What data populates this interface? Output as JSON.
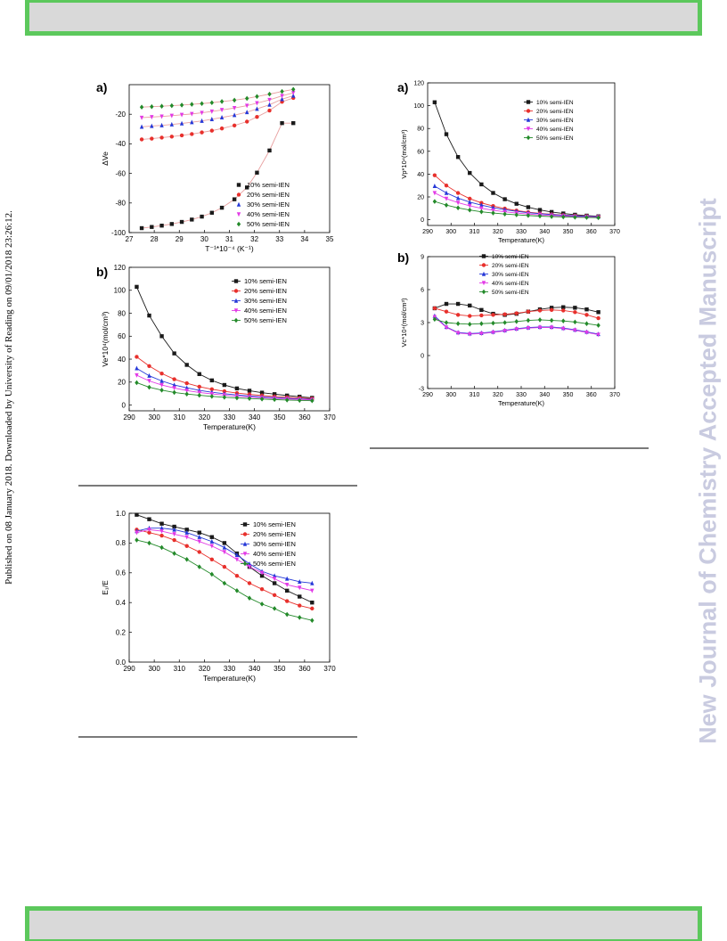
{
  "page": {
    "side_note": "Published on 08 January 2018. Downloaded by University of Reading on 09/01/2018 23:26:12.",
    "journal_watermark": "New Journal of Chemistry Accepted Manuscript"
  },
  "legend_labels": [
    "10% semi-IEN",
    "20% semi-IEN",
    "30% semi-IEN",
    "40% semi-IEN",
    "50% semi-IEN"
  ],
  "series_colors": [
    "#1a1a1a",
    "#e8302c",
    "#2538d8",
    "#e23ae6",
    "#238a2a"
  ],
  "series_markers": [
    "square",
    "circle",
    "triangle",
    "down-triangle",
    "diamond"
  ],
  "chart_data": [
    {
      "id": "left-a",
      "panel_label": "a)",
      "type": "scatter",
      "xlabel": "T⁻¹*10⁻⁴ (K⁻¹)",
      "ylabel": "ΔVe",
      "xlim": [
        27,
        35
      ],
      "ylim": [
        -100,
        0
      ],
      "xticks": [
        27,
        28,
        29,
        30,
        31,
        32,
        33,
        34,
        35
      ],
      "yticks": [
        -100,
        -80,
        -60,
        -40,
        -20
      ],
      "legend_position": "bottom-right",
      "fit_color": "#e8a0a0",
      "x": [
        27.5,
        27.9,
        28.3,
        28.7,
        29.1,
        29.5,
        29.9,
        30.3,
        30.7,
        31.2,
        31.7,
        32.1,
        32.6,
        33.1,
        33.55
      ],
      "series": [
        {
          "name": "10% semi-IEN",
          "values": [
            -97,
            -96.2,
            -95.3,
            -94.2,
            -92.8,
            -91.2,
            -89.2,
            -86.6,
            -83.2,
            -77.5,
            -69.5,
            -59.5,
            -44.5,
            -26,
            -26
          ]
        },
        {
          "name": "20% semi-IEN",
          "values": [
            -37,
            -36.5,
            -35.8,
            -35.1,
            -34.3,
            -33.4,
            -32.3,
            -31.1,
            -29.6,
            -27.6,
            -25,
            -21.8,
            -17.5,
            -11.6,
            -9
          ]
        },
        {
          "name": "30% semi-IEN",
          "values": [
            -28.5,
            -28,
            -27.5,
            -26.9,
            -26.2,
            -25.4,
            -24.5,
            -23.4,
            -22.2,
            -20.6,
            -18.6,
            -16.4,
            -13.6,
            -9.8,
            -7.5
          ]
        },
        {
          "name": "40% semi-IEN",
          "values": [
            -22.3,
            -21.9,
            -21.5,
            -21,
            -20.4,
            -19.8,
            -19,
            -18.1,
            -17.1,
            -15.8,
            -14.2,
            -12.5,
            -10.3,
            -7.6,
            -5.5
          ]
        },
        {
          "name": "50% semi-IEN",
          "values": [
            -15.2,
            -14.9,
            -14.6,
            -14.2,
            -13.8,
            -13.3,
            -12.8,
            -12.2,
            -11.4,
            -10.5,
            -9.3,
            -8,
            -6.4,
            -4.6,
            -3.2
          ]
        }
      ]
    },
    {
      "id": "left-b",
      "panel_label": "b)",
      "type": "line",
      "xlabel": "Temperature(K)",
      "ylabel": "Ve*10⁴(mol/cm³)",
      "xlim": [
        290,
        370
      ],
      "ylim": [
        -5,
        120
      ],
      "xticks": [
        290,
        300,
        310,
        320,
        330,
        340,
        350,
        360,
        370
      ],
      "yticks": [
        0,
        20,
        40,
        60,
        80,
        100,
        120
      ],
      "legend_position": "top-right",
      "x": [
        293,
        298,
        303,
        308,
        313,
        318,
        323,
        328,
        333,
        338,
        343,
        348,
        353,
        358,
        363
      ],
      "series": [
        {
          "name": "10% semi-IEN",
          "values": [
            103,
            78,
            60,
            45,
            35,
            27,
            21.5,
            17.5,
            14.5,
            12.5,
            10.8,
            9.5,
            8.3,
            7.3,
            6.3
          ]
        },
        {
          "name": "20% semi-IEN",
          "values": [
            42,
            34,
            27.5,
            22.5,
            19,
            16,
            13.8,
            12,
            10.5,
            9.3,
            8.3,
            7.5,
            6.8,
            6.2,
            5.6
          ]
        },
        {
          "name": "30% semi-IEN",
          "values": [
            32,
            25.5,
            21,
            17.5,
            15,
            12.8,
            11.2,
            9.9,
            8.8,
            7.9,
            7.1,
            6.5,
            5.9,
            5.4,
            5
          ]
        },
        {
          "name": "40% semi-IEN",
          "values": [
            26,
            21,
            17.5,
            14.8,
            12.6,
            11,
            9.7,
            8.6,
            7.7,
            7,
            6.3,
            5.8,
            5.3,
            4.9,
            4.5
          ]
        },
        {
          "name": "50% semi-IEN",
          "values": [
            19.5,
            15.5,
            13,
            11,
            9.6,
            8.5,
            7.6,
            6.8,
            6.2,
            5.7,
            5.2,
            4.8,
            4.4,
            4.1,
            3.8
          ]
        }
      ]
    },
    {
      "id": "left-c",
      "panel_label": "",
      "type": "line",
      "xlabel": "Temperature(K)",
      "ylabel": "E₁/E",
      "xlim": [
        290,
        370
      ],
      "ylim": [
        0,
        1
      ],
      "xticks": [
        290,
        300,
        310,
        320,
        330,
        340,
        350,
        360,
        370
      ],
      "yticks": [
        0.0,
        0.2,
        0.4,
        0.6,
        0.8,
        1.0
      ],
      "legend_position": "top-right",
      "x": [
        293,
        298,
        303,
        308,
        313,
        318,
        323,
        328,
        333,
        338,
        343,
        348,
        353,
        358,
        363
      ],
      "series": [
        {
          "name": "10% semi-IEN",
          "values": [
            0.99,
            0.96,
            0.93,
            0.91,
            0.89,
            0.87,
            0.84,
            0.8,
            0.73,
            0.64,
            0.58,
            0.53,
            0.48,
            0.44,
            0.4
          ]
        },
        {
          "name": "20% semi-IEN",
          "values": [
            0.89,
            0.87,
            0.85,
            0.82,
            0.78,
            0.74,
            0.69,
            0.64,
            0.58,
            0.53,
            0.49,
            0.45,
            0.41,
            0.38,
            0.36
          ]
        },
        {
          "name": "30% semi-IEN",
          "values": [
            0.88,
            0.9,
            0.9,
            0.89,
            0.87,
            0.84,
            0.81,
            0.77,
            0.72,
            0.66,
            0.61,
            0.58,
            0.56,
            0.54,
            0.53
          ]
        },
        {
          "name": "40% semi-IEN",
          "values": [
            0.87,
            0.89,
            0.88,
            0.86,
            0.84,
            0.81,
            0.78,
            0.74,
            0.69,
            0.64,
            0.6,
            0.56,
            0.52,
            0.5,
            0.48
          ]
        },
        {
          "name": "50% semi-IEN",
          "values": [
            0.82,
            0.8,
            0.77,
            0.73,
            0.69,
            0.64,
            0.59,
            0.53,
            0.48,
            0.43,
            0.39,
            0.36,
            0.32,
            0.3,
            0.28
          ]
        }
      ]
    },
    {
      "id": "right-a",
      "panel_label": "a)",
      "type": "line",
      "xlabel": "Temperature(K)",
      "ylabel": "Vp*10⁴(mol/cm³)",
      "xlim": [
        290,
        370
      ],
      "ylim": [
        -5,
        120
      ],
      "xticks": [
        290,
        300,
        310,
        320,
        330,
        340,
        350,
        360,
        370
      ],
      "yticks": [
        0,
        20,
        40,
        60,
        80,
        100,
        120
      ],
      "legend_position": "top-right",
      "x": [
        293,
        298,
        303,
        308,
        313,
        318,
        323,
        328,
        333,
        338,
        343,
        348,
        353,
        358,
        363
      ],
      "series": [
        {
          "name": "10% semi-IEN",
          "values": [
            103,
            75,
            55,
            41,
            31,
            23.5,
            18,
            14,
            11,
            8.6,
            6.8,
            5.5,
            4.4,
            3.6,
            3
          ]
        },
        {
          "name": "20% semi-IEN",
          "values": [
            39,
            30,
            23.5,
            18.5,
            14.8,
            12,
            9.8,
            8,
            6.7,
            5.6,
            4.8,
            4.1,
            3.6,
            3.2,
            2.8
          ]
        },
        {
          "name": "30% semi-IEN",
          "values": [
            29.5,
            23.5,
            19,
            15.5,
            12.8,
            10.6,
            8.8,
            7.4,
            6.2,
            5.3,
            4.5,
            3.9,
            3.4,
            3,
            2.7
          ]
        },
        {
          "name": "40% semi-IEN",
          "values": [
            23.5,
            18.5,
            15,
            12.2,
            10,
            8.3,
            7,
            5.9,
            5,
            4.3,
            3.7,
            3.2,
            2.8,
            2.5,
            2.2
          ]
        },
        {
          "name": "50% semi-IEN",
          "values": [
            16,
            12.8,
            10.4,
            8.5,
            7,
            5.9,
            5,
            4.3,
            3.7,
            3.2,
            2.8,
            2.5,
            2.2,
            2,
            1.8
          ]
        }
      ]
    },
    {
      "id": "right-b",
      "panel_label": "b)",
      "type": "line",
      "xlabel": "Temperature(K)",
      "ylabel": "Vc*10⁴(mol/cm³)",
      "xlim": [
        290,
        370
      ],
      "ylim": [
        -3,
        9
      ],
      "xticks": [
        290,
        300,
        310,
        320,
        330,
        340,
        350,
        360,
        370
      ],
      "yticks": [
        -3,
        0,
        3,
        6,
        9
      ],
      "legend_position": "top-center",
      "x": [
        293,
        298,
        303,
        308,
        313,
        318,
        323,
        328,
        333,
        338,
        343,
        348,
        353,
        358,
        363
      ],
      "series": [
        {
          "name": "10% semi-IEN",
          "values": [
            4.3,
            4.7,
            4.7,
            4.55,
            4.15,
            3.8,
            3.7,
            3.8,
            4.0,
            4.2,
            4.35,
            4.4,
            4.35,
            4.2,
            3.95
          ]
        },
        {
          "name": "20% semi-IEN",
          "values": [
            4.3,
            4.0,
            3.7,
            3.6,
            3.65,
            3.7,
            3.75,
            3.85,
            4.0,
            4.1,
            4.15,
            4.1,
            3.95,
            3.7,
            3.4
          ]
        },
        {
          "name": "30% semi-IEN",
          "values": [
            3.6,
            2.6,
            2.1,
            2.0,
            2.05,
            2.15,
            2.3,
            2.45,
            2.55,
            2.6,
            2.6,
            2.5,
            2.35,
            2.15,
            1.95
          ]
        },
        {
          "name": "40% semi-IEN",
          "values": [
            3.5,
            2.55,
            2.05,
            1.95,
            2.0,
            2.1,
            2.25,
            2.4,
            2.5,
            2.55,
            2.55,
            2.45,
            2.3,
            2.1,
            1.9
          ]
        },
        {
          "name": "50% semi-IEN",
          "values": [
            3.3,
            3.0,
            2.9,
            2.85,
            2.9,
            2.95,
            3.0,
            3.1,
            3.2,
            3.25,
            3.2,
            3.15,
            3.05,
            2.9,
            2.75
          ]
        }
      ]
    }
  ]
}
